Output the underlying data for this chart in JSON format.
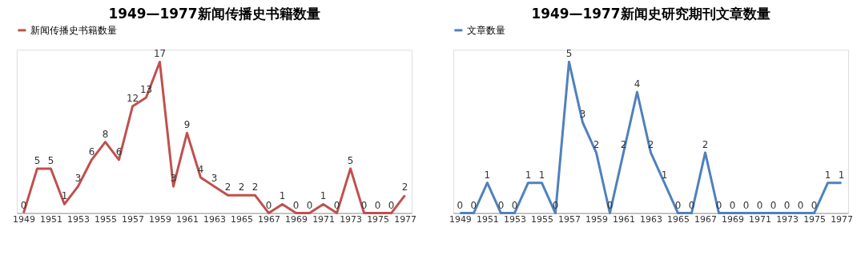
{
  "chart_data": [
    {
      "type": "line",
      "title": "1949—1977新闻传播史书籍数量",
      "categories": [
        "1949",
        null,
        "1951",
        null,
        "1953",
        null,
        "1955",
        null,
        "1957",
        null,
        "1959",
        null,
        "1961",
        null,
        "1963",
        null,
        "1965",
        null,
        "1967",
        null,
        "1969",
        null,
        "1971",
        null,
        "1973",
        null,
        "1975",
        null,
        "1977"
      ],
      "series": [
        {
          "name": "新闻传播史书籍数量",
          "color": "#c0504d",
          "values": [
            0,
            5,
            5,
            1,
            3,
            6,
            8,
            6,
            12,
            13,
            17,
            3,
            9,
            4,
            3,
            2,
            2,
            2,
            0,
            1,
            0,
            0,
            1,
            0,
            5,
            0,
            0,
            0,
            2
          ]
        }
      ],
      "data_labels": true,
      "legend": "top",
      "grid": false,
      "marker": "none",
      "line_style": "solid"
    },
    {
      "type": "line",
      "title": "1949—1977新闻史研究期刊文章数量",
      "categories": [
        "1949",
        null,
        "1951",
        null,
        "1953",
        null,
        "1955",
        null,
        "1957",
        null,
        "1959",
        null,
        "1961",
        null,
        "1963",
        null,
        "1965",
        null,
        "1967",
        null,
        "1969",
        null,
        "1971",
        null,
        "1973",
        null,
        "1975",
        null,
        "1977"
      ],
      "series": [
        {
          "name": "文章数量",
          "color": "#4f81bd",
          "values": [
            0,
            0,
            1,
            0,
            0,
            1,
            1,
            0,
            5,
            3,
            2,
            0,
            2,
            4,
            2,
            1,
            0,
            0,
            2,
            0,
            0,
            0,
            0,
            0,
            0,
            0,
            0,
            1,
            1
          ]
        }
      ],
      "data_labels": true,
      "legend": "top",
      "grid": false,
      "marker": "none",
      "line_style": "solid"
    }
  ]
}
